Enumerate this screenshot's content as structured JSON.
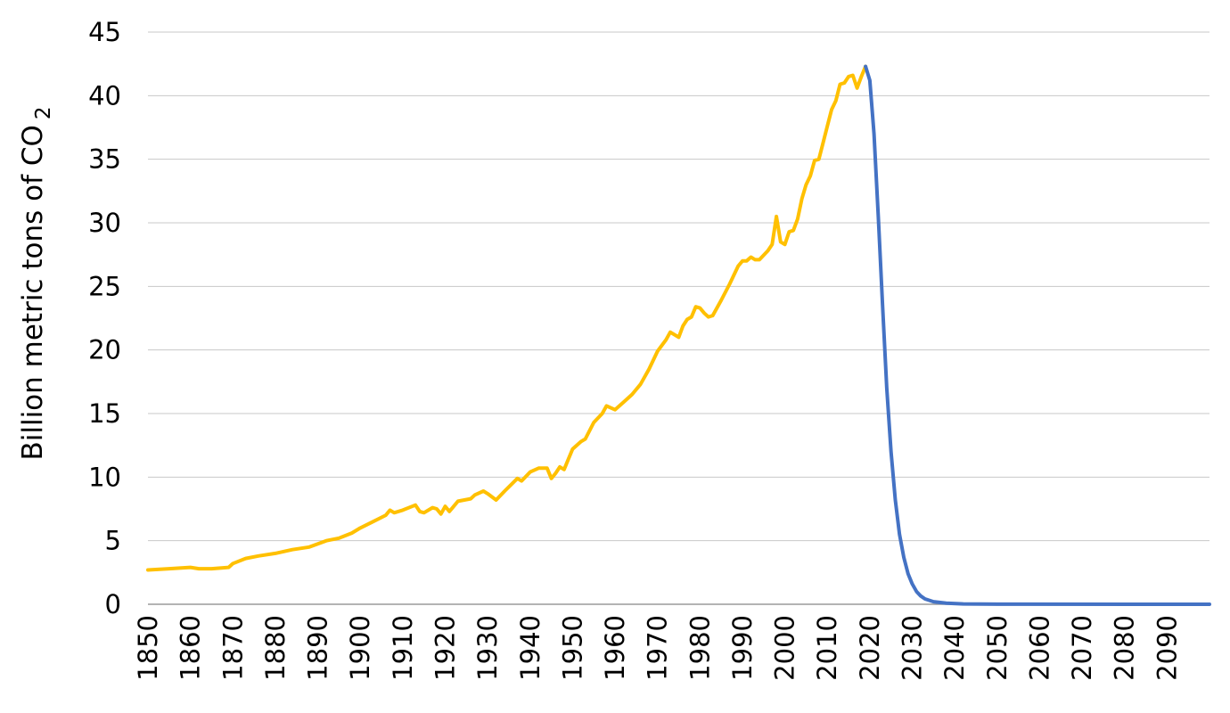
{
  "chart_data": {
    "type": "line",
    "title": "",
    "xlabel": "",
    "ylabel": "Billion metric tons of CO",
    "ylabel_subscript": "2",
    "ylim": [
      0,
      45
    ],
    "xlim": [
      1850,
      2100
    ],
    "y_ticks": [
      "0",
      "5",
      "10",
      "15",
      "20",
      "25",
      "30",
      "35",
      "40",
      "45"
    ],
    "x_ticks": [
      "1850",
      "1860",
      "1870",
      "1880",
      "1890",
      "1900",
      "1910",
      "1920",
      "1930",
      "1940",
      "1950",
      "1960",
      "1970",
      "1980",
      "1990",
      "2000",
      "2010",
      "2020",
      "2030",
      "2040",
      "2050",
      "2060",
      "2070",
      "2080",
      "2090"
    ],
    "grid": "horizontal",
    "legend": "none",
    "series": [
      {
        "color": "#FFC000",
        "points": [
          [
            1850,
            2.7
          ],
          [
            1855,
            2.8
          ],
          [
            1860,
            2.9
          ],
          [
            1862,
            2.8
          ],
          [
            1865,
            2.8
          ],
          [
            1869,
            2.9
          ],
          [
            1870,
            3.2
          ],
          [
            1873,
            3.6
          ],
          [
            1876,
            3.8
          ],
          [
            1880,
            4.0
          ],
          [
            1884,
            4.3
          ],
          [
            1888,
            4.5
          ],
          [
            1892,
            5.0
          ],
          [
            1895,
            5.2
          ],
          [
            1898,
            5.6
          ],
          [
            1900,
            6.0
          ],
          [
            1903,
            6.5
          ],
          [
            1906,
            7.0
          ],
          [
            1907,
            7.4
          ],
          [
            1908,
            7.2
          ],
          [
            1910,
            7.4
          ],
          [
            1913,
            7.8
          ],
          [
            1914,
            7.3
          ],
          [
            1915,
            7.2
          ],
          [
            1917,
            7.6
          ],
          [
            1918,
            7.5
          ],
          [
            1919,
            7.1
          ],
          [
            1920,
            7.7
          ],
          [
            1921,
            7.3
          ],
          [
            1923,
            8.1
          ],
          [
            1926,
            8.3
          ],
          [
            1927,
            8.6
          ],
          [
            1929,
            8.9
          ],
          [
            1930,
            8.7
          ],
          [
            1932,
            8.2
          ],
          [
            1934,
            8.9
          ],
          [
            1937,
            9.9
          ],
          [
            1938,
            9.7
          ],
          [
            1940,
            10.4
          ],
          [
            1942,
            10.7
          ],
          [
            1944,
            10.7
          ],
          [
            1945,
            9.9
          ],
          [
            1946,
            10.3
          ],
          [
            1947,
            10.8
          ],
          [
            1948,
            10.6
          ],
          [
            1949,
            11.4
          ],
          [
            1950,
            12.2
          ],
          [
            1952,
            12.8
          ],
          [
            1953,
            13.0
          ],
          [
            1955,
            14.3
          ],
          [
            1957,
            15.0
          ],
          [
            1958,
            15.6
          ],
          [
            1960,
            15.3
          ],
          [
            1962,
            15.9
          ],
          [
            1964,
            16.5
          ],
          [
            1966,
            17.3
          ],
          [
            1968,
            18.5
          ],
          [
            1970,
            19.9
          ],
          [
            1972,
            20.8
          ],
          [
            1973,
            21.4
          ],
          [
            1975,
            21.0
          ],
          [
            1976,
            21.9
          ],
          [
            1977,
            22.4
          ],
          [
            1978,
            22.6
          ],
          [
            1979,
            23.4
          ],
          [
            1980,
            23.3
          ],
          [
            1981,
            22.9
          ],
          [
            1982,
            22.6
          ],
          [
            1983,
            22.7
          ],
          [
            1985,
            23.9
          ],
          [
            1987,
            25.2
          ],
          [
            1989,
            26.6
          ],
          [
            1990,
            27.0
          ],
          [
            1991,
            27.0
          ],
          [
            1992,
            27.3
          ],
          [
            1993,
            27.1
          ],
          [
            1994,
            27.1
          ],
          [
            1996,
            27.8
          ],
          [
            1997,
            28.3
          ],
          [
            1998,
            30.5
          ],
          [
            1999,
            28.5
          ],
          [
            2000,
            28.3
          ],
          [
            2001,
            29.3
          ],
          [
            2002,
            29.4
          ],
          [
            2003,
            30.3
          ],
          [
            2004,
            31.9
          ],
          [
            2005,
            33.0
          ],
          [
            2006,
            33.7
          ],
          [
            2007,
            34.9
          ],
          [
            2008,
            35.0
          ],
          [
            2009,
            36.3
          ],
          [
            2010,
            37.6
          ],
          [
            2011,
            38.9
          ],
          [
            2012,
            39.6
          ],
          [
            2013,
            40.9
          ],
          [
            2014,
            41.0
          ],
          [
            2015,
            41.5
          ],
          [
            2016,
            41.6
          ],
          [
            2017,
            40.6
          ],
          [
            2018,
            41.5
          ],
          [
            2019,
            42.3
          ]
        ]
      },
      {
        "color": "#4472C4",
        "points": [
          [
            2019,
            42.3
          ],
          [
            2020,
            41.2
          ],
          [
            2021,
            37.0
          ],
          [
            2022,
            30.5
          ],
          [
            2023,
            23.5
          ],
          [
            2024,
            17.0
          ],
          [
            2025,
            12.0
          ],
          [
            2026,
            8.2
          ],
          [
            2027,
            5.5
          ],
          [
            2028,
            3.7
          ],
          [
            2029,
            2.4
          ],
          [
            2030,
            1.6
          ],
          [
            2031,
            1.0
          ],
          [
            2032,
            0.65
          ],
          [
            2033,
            0.42
          ],
          [
            2035,
            0.2
          ],
          [
            2038,
            0.09
          ],
          [
            2042,
            0.03
          ],
          [
            2050,
            0.01
          ],
          [
            2100,
            0.0
          ]
        ]
      }
    ]
  }
}
